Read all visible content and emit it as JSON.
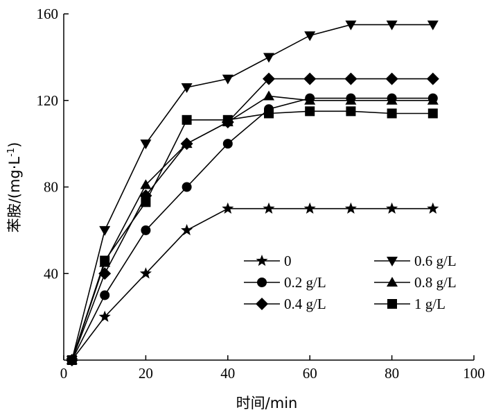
{
  "chart_data": {
    "type": "line",
    "xlabel": "时间/min",
    "ylabel": "苯胺/(mg·L-1)",
    "ylabel_parts": {
      "main": "苯胺/(mg·L",
      "sup": "-1",
      "close": ")"
    },
    "xlim": [
      0,
      100
    ],
    "ylim": [
      0,
      160
    ],
    "xticks": [
      0,
      20,
      40,
      60,
      80,
      100
    ],
    "yticks": [
      40,
      80,
      120,
      160
    ],
    "grid": false,
    "legend_placement": "bottom-right, two columns",
    "series": [
      {
        "name": "0",
        "marker": "star",
        "x": [
          2,
          10,
          20,
          30,
          40,
          50,
          60,
          70,
          80,
          90
        ],
        "y": [
          0,
          20,
          40,
          60,
          70,
          70,
          70,
          70,
          70,
          70
        ]
      },
      {
        "name": "0.2 g/L",
        "marker": "circle",
        "x": [
          2,
          10,
          20,
          30,
          40,
          50,
          60,
          70,
          80,
          90
        ],
        "y": [
          0,
          30,
          60,
          80,
          100,
          116,
          121,
          121,
          121,
          121
        ]
      },
      {
        "name": "0.4 g/L",
        "marker": "diamond",
        "x": [
          2,
          10,
          20,
          30,
          40,
          50,
          60,
          70,
          80,
          90
        ],
        "y": [
          0,
          40,
          76,
          100,
          110,
          130,
          130,
          130,
          130,
          130
        ]
      },
      {
        "name": "0.6 g/L",
        "marker": "triangle-down",
        "x": [
          2,
          10,
          20,
          30,
          40,
          50,
          60,
          70,
          80,
          90
        ],
        "y": [
          0,
          60,
          100,
          126,
          130,
          140,
          150,
          155,
          155,
          155
        ]
      },
      {
        "name": "0.8 g/L",
        "marker": "triangle-up",
        "x": [
          2,
          10,
          20,
          30,
          40,
          50,
          60,
          70,
          80,
          90
        ],
        "y": [
          0,
          45,
          81,
          100,
          110,
          122,
          120,
          120,
          120,
          120
        ]
      },
      {
        "name": "1 g/L",
        "marker": "square",
        "x": [
          2,
          10,
          20,
          30,
          40,
          50,
          60,
          70,
          80,
          90
        ],
        "y": [
          0,
          46,
          73,
          111,
          111,
          114,
          115,
          115,
          114,
          114
        ]
      }
    ]
  }
}
